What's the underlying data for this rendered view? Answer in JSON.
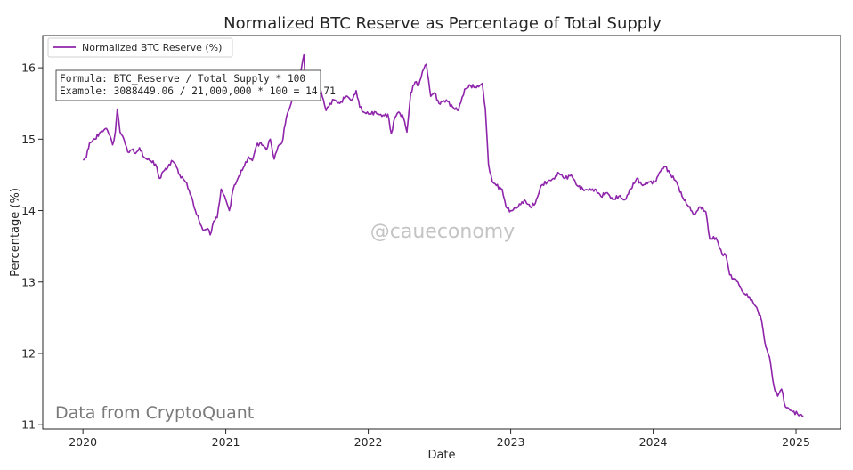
{
  "chart_data": {
    "type": "line",
    "title": "Normalized BTC Reserve as Percentage of Total Supply",
    "xlabel": "Date",
    "ylabel": "Percentage (%)",
    "xlim": [
      "2019-09-20",
      "2025-04-25"
    ],
    "ylim": [
      10.94,
      16.45
    ],
    "x_ticks": [
      "2020",
      "2021",
      "2022",
      "2023",
      "2024",
      "2025"
    ],
    "x_tick_dates": [
      "2020-01-01",
      "2021-01-01",
      "2022-01-01",
      "2023-01-01",
      "2024-01-01",
      "2025-01-01"
    ],
    "y_ticks": [
      11,
      12,
      13,
      14,
      15,
      16
    ],
    "grid": false,
    "legend": {
      "position": "top-left",
      "entries": [
        "Normalized BTC Reserve (%)"
      ]
    },
    "annotation": {
      "line1": "Formula: BTC_Reserve / Total Supply * 100",
      "line2": "Example: 3088449.06 / 21,000,000 * 100 = 14.71",
      "position": "top-left"
    },
    "watermark": "@caueconomy",
    "source": "Data from CryptoQuant",
    "series": [
      {
        "name": "Normalized BTC Reserve (%)",
        "color": "#8e24aa",
        "points": [
          [
            "2020-01-01",
            14.71
          ],
          [
            "2020-01-10",
            14.75
          ],
          [
            "2020-01-18",
            14.95
          ],
          [
            "2020-02-01",
            15.0
          ],
          [
            "2020-02-15",
            15.1
          ],
          [
            "2020-03-01",
            15.15
          ],
          [
            "2020-03-10",
            15.05
          ],
          [
            "2020-03-17",
            14.92
          ],
          [
            "2020-03-24",
            15.1
          ],
          [
            "2020-03-29",
            15.42
          ],
          [
            "2020-04-05",
            15.1
          ],
          [
            "2020-04-15",
            15.0
          ],
          [
            "2020-04-25",
            14.82
          ],
          [
            "2020-05-05",
            14.85
          ],
          [
            "2020-05-15",
            14.8
          ],
          [
            "2020-05-25",
            14.88
          ],
          [
            "2020-06-05",
            14.75
          ],
          [
            "2020-06-20",
            14.7
          ],
          [
            "2020-07-05",
            14.65
          ],
          [
            "2020-07-15",
            14.45
          ],
          [
            "2020-07-25",
            14.55
          ],
          [
            "2020-08-05",
            14.6
          ],
          [
            "2020-08-15",
            14.7
          ],
          [
            "2020-08-25",
            14.65
          ],
          [
            "2020-09-05",
            14.5
          ],
          [
            "2020-09-20",
            14.4
          ],
          [
            "2020-10-05",
            14.2
          ],
          [
            "2020-10-15",
            14.0
          ],
          [
            "2020-10-25",
            13.85
          ],
          [
            "2020-11-05",
            13.72
          ],
          [
            "2020-11-15",
            13.75
          ],
          [
            "2020-11-22",
            13.66
          ],
          [
            "2020-12-01",
            13.85
          ],
          [
            "2020-12-10",
            13.9
          ],
          [
            "2020-12-20",
            14.3
          ],
          [
            "2021-01-01",
            14.15
          ],
          [
            "2021-01-10",
            14.0
          ],
          [
            "2021-01-20",
            14.3
          ],
          [
            "2021-02-01",
            14.45
          ],
          [
            "2021-02-15",
            14.6
          ],
          [
            "2021-03-01",
            14.75
          ],
          [
            "2021-03-10",
            14.7
          ],
          [
            "2021-03-20",
            14.9
          ],
          [
            "2021-04-01",
            14.95
          ],
          [
            "2021-04-15",
            14.85
          ],
          [
            "2021-04-25",
            15.0
          ],
          [
            "2021-05-05",
            14.72
          ],
          [
            "2021-05-15",
            14.9
          ],
          [
            "2021-05-25",
            14.95
          ],
          [
            "2021-06-05",
            15.3
          ],
          [
            "2021-06-20",
            15.55
          ],
          [
            "2021-07-01",
            15.7
          ],
          [
            "2021-07-10",
            15.9
          ],
          [
            "2021-07-20",
            16.18
          ],
          [
            "2021-07-25",
            15.7
          ],
          [
            "2021-08-05",
            15.95
          ],
          [
            "2021-08-15",
            15.8
          ],
          [
            "2021-08-25",
            15.85
          ],
          [
            "2021-09-05",
            15.6
          ],
          [
            "2021-09-15",
            15.4
          ],
          [
            "2021-09-25",
            15.5
          ],
          [
            "2021-10-05",
            15.55
          ],
          [
            "2021-10-20",
            15.5
          ],
          [
            "2021-11-05",
            15.6
          ],
          [
            "2021-11-20",
            15.55
          ],
          [
            "2021-12-01",
            15.68
          ],
          [
            "2021-12-10",
            15.45
          ],
          [
            "2021-12-20",
            15.38
          ],
          [
            "2022-01-05",
            15.35
          ],
          [
            "2022-01-20",
            15.38
          ],
          [
            "2022-02-05",
            15.32
          ],
          [
            "2022-02-20",
            15.35
          ],
          [
            "2022-03-01",
            15.08
          ],
          [
            "2022-03-10",
            15.3
          ],
          [
            "2022-03-20",
            15.38
          ],
          [
            "2022-04-01",
            15.3
          ],
          [
            "2022-04-10",
            15.1
          ],
          [
            "2022-04-20",
            15.65
          ],
          [
            "2022-05-01",
            15.8
          ],
          [
            "2022-05-10",
            15.75
          ],
          [
            "2022-05-20",
            15.95
          ],
          [
            "2022-05-30",
            16.05
          ],
          [
            "2022-06-10",
            15.6
          ],
          [
            "2022-06-20",
            15.65
          ],
          [
            "2022-07-01",
            15.5
          ],
          [
            "2022-07-20",
            15.55
          ],
          [
            "2022-08-05",
            15.45
          ],
          [
            "2022-08-20",
            15.4
          ],
          [
            "2022-09-05",
            15.7
          ],
          [
            "2022-09-20",
            15.75
          ],
          [
            "2022-10-05",
            15.72
          ],
          [
            "2022-10-20",
            15.78
          ],
          [
            "2022-10-28",
            15.42
          ],
          [
            "2022-11-05",
            14.65
          ],
          [
            "2022-11-15",
            14.4
          ],
          [
            "2022-11-25",
            14.35
          ],
          [
            "2022-12-10",
            14.3
          ],
          [
            "2022-12-20",
            14.05
          ],
          [
            "2023-01-01",
            14.0
          ],
          [
            "2023-01-20",
            14.05
          ],
          [
            "2023-02-05",
            14.15
          ],
          [
            "2023-02-20",
            14.05
          ],
          [
            "2023-03-05",
            14.1
          ],
          [
            "2023-03-20",
            14.35
          ],
          [
            "2023-04-05",
            14.4
          ],
          [
            "2023-04-20",
            14.45
          ],
          [
            "2023-05-05",
            14.52
          ],
          [
            "2023-05-20",
            14.45
          ],
          [
            "2023-06-05",
            14.5
          ],
          [
            "2023-06-20",
            14.35
          ],
          [
            "2023-07-05",
            14.3
          ],
          [
            "2023-07-20",
            14.28
          ],
          [
            "2023-08-05",
            14.3
          ],
          [
            "2023-08-20",
            14.2
          ],
          [
            "2023-09-05",
            14.25
          ],
          [
            "2023-09-20",
            14.15
          ],
          [
            "2023-10-05",
            14.2
          ],
          [
            "2023-10-20",
            14.15
          ],
          [
            "2023-11-05",
            14.3
          ],
          [
            "2023-11-20",
            14.45
          ],
          [
            "2023-12-05",
            14.35
          ],
          [
            "2023-12-20",
            14.4
          ],
          [
            "2024-01-05",
            14.4
          ],
          [
            "2024-01-20",
            14.55
          ],
          [
            "2024-02-01",
            14.62
          ],
          [
            "2024-02-15",
            14.5
          ],
          [
            "2024-03-01",
            14.4
          ],
          [
            "2024-03-15",
            14.2
          ],
          [
            "2024-04-01",
            14.05
          ],
          [
            "2024-04-15",
            13.95
          ],
          [
            "2024-05-01",
            14.05
          ],
          [
            "2024-05-15",
            13.98
          ],
          [
            "2024-05-25",
            13.6
          ],
          [
            "2024-06-10",
            13.62
          ],
          [
            "2024-06-25",
            13.4
          ],
          [
            "2024-07-05",
            13.38
          ],
          [
            "2024-07-15",
            13.1
          ],
          [
            "2024-07-25",
            13.05
          ],
          [
            "2024-08-05",
            13.0
          ],
          [
            "2024-08-15",
            12.88
          ],
          [
            "2024-08-25",
            12.82
          ],
          [
            "2024-09-10",
            12.75
          ],
          [
            "2024-09-25",
            12.6
          ],
          [
            "2024-10-05",
            12.45
          ],
          [
            "2024-10-15",
            12.1
          ],
          [
            "2024-10-25",
            11.95
          ],
          [
            "2024-11-05",
            11.55
          ],
          [
            "2024-11-15",
            11.4
          ],
          [
            "2024-11-25",
            11.5
          ],
          [
            "2024-12-05",
            11.25
          ],
          [
            "2024-12-20",
            11.2
          ],
          [
            "2025-01-05",
            11.15
          ],
          [
            "2025-01-20",
            11.12
          ]
        ]
      }
    ]
  }
}
